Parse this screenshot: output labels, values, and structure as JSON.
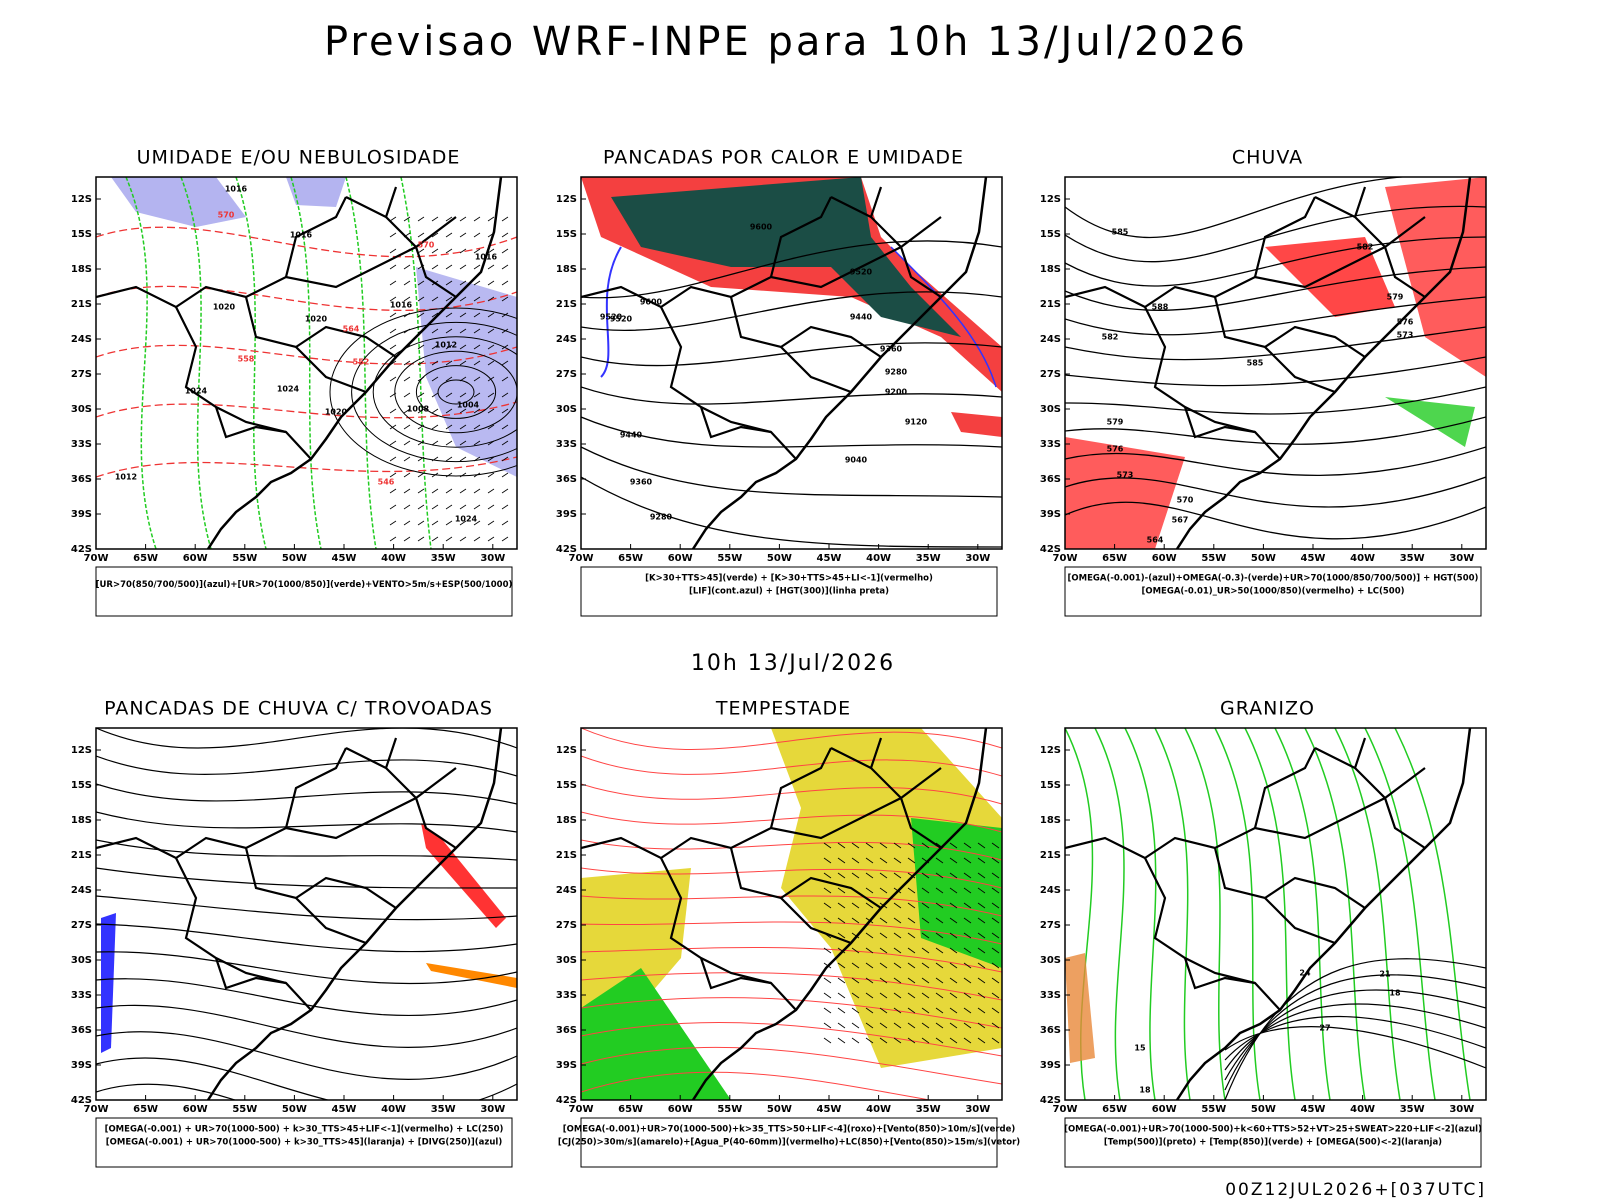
{
  "title": "Previsao WRF-INPE  para 10h 13/Jul/2026",
  "subtitle": "10h 13/Jul/2026",
  "footer": "00Z12JUL2026+[037UTC]",
  "lat_labels": [
    "12S",
    "15S",
    "18S",
    "21S",
    "24S",
    "27S",
    "30S",
    "33S",
    "36S",
    "39S",
    "42S"
  ],
  "lon_labels": [
    "70W",
    "65W",
    "60W",
    "55W",
    "50W",
    "45W",
    "40W",
    "35W",
    "30W"
  ],
  "panels": [
    {
      "title": "UMIDADE E/OU NEBULOSIDADE",
      "legend": [
        "[UR>70(850/700/500)](azul)+[UR>70(1000/850)](verde)+VENTO>5m/s+ESP(500/1000)"
      ],
      "contour_labels": [
        "1016",
        "1016",
        "1016",
        "1020",
        "1020",
        "1024",
        "1024",
        "1020",
        "1016",
        "1012",
        "1008",
        "1004",
        "1024",
        "1012",
        "570",
        "570",
        "564",
        "558",
        "552",
        "546"
      ]
    },
    {
      "title": "PANCADAS POR CALOR E UMIDADE",
      "legend": [
        "[K>30+TTS>45](verde) + [K>30+TTS>45+LI<-1](vermelho)",
        "[LIF](cont.azul) + [HGT(300)](linha preta)"
      ],
      "contour_labels": [
        "9600",
        "9520",
        "9600",
        "9520",
        "9440",
        "9360",
        "9280",
        "9200",
        "9120",
        "9040",
        "9440",
        "9360",
        "9280",
        "9520"
      ]
    },
    {
      "title": "CHUVA",
      "legend": [
        "[OMEGA(-0.001)-(azul)+OMEGA(-0.3)-(verde)+UR>70(1000/850/700/500)] + HGT(500)",
        "[OMEGA(-0.01)_UR>50(1000/850)(vermelho) + LC(500)"
      ],
      "contour_labels": [
        "585",
        "582",
        "579",
        "576",
        "573",
        "570",
        "567",
        "564",
        "588",
        "585",
        "582",
        "579",
        "576",
        "573"
      ]
    },
    {
      "title": "PANCADAS DE CHUVA C/ TROVOADAS",
      "legend": [
        "[OMEGA(-0.001) + UR>70(1000-500) + k>30_TTS>45+LIF<-1](vermelho) + LC(250)",
        "[OMEGA(-0.001) + UR>70(1000-500) + k>30_TTS>45](laranja) + [DIVG(250)](azul)"
      ],
      "contour_labels": []
    },
    {
      "title": "TEMPESTADE",
      "legend": [
        "[OMEGA(-0.001)+UR>70(1000-500)+k>35_TTS>50+LIF<-4](roxo)+[Vento(850)>10m/s](verde)",
        "[CJ(250)>30m/s](amarelo)+[Agua_P(40-60mm)](vermelho)+LC(850)+[Vento(850)>15m/s](vetor)"
      ],
      "contour_labels": []
    },
    {
      "title": "GRANIZO",
      "legend": [
        "[OMEGA(-0.001)+UR>70(1000-500)+k<60+TTS>52+VT>25+SWEAT>220+LIF<-2](azul)",
        "[Temp(500)](preto) + [Temp(850)](verde) + [OMEGA(500)<-2](laranja)"
      ],
      "contour_labels": [
        "24",
        "21",
        "18",
        "27",
        "15",
        "18"
      ]
    }
  ]
}
